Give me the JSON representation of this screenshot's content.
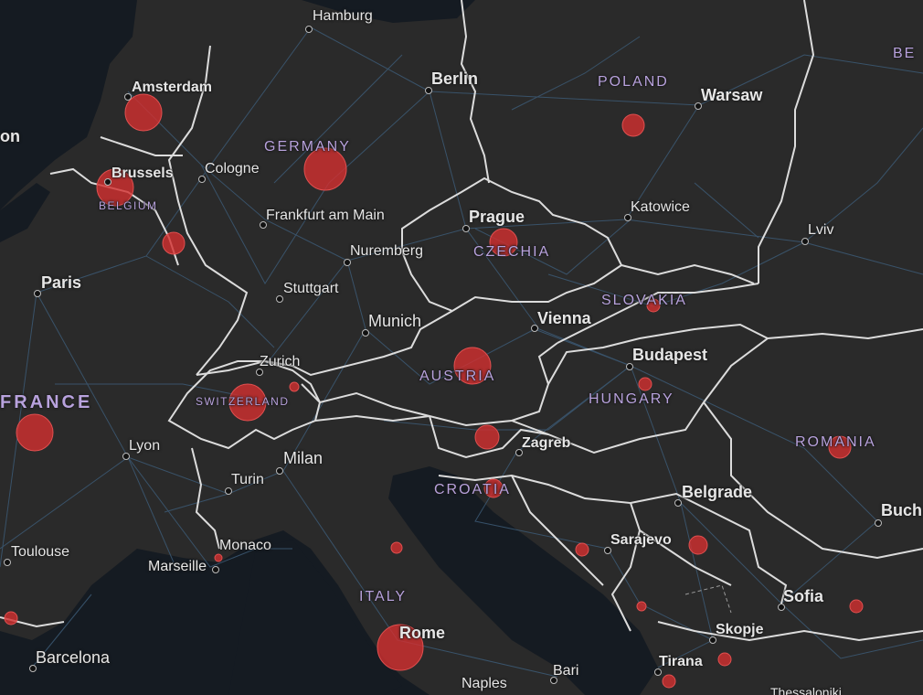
{
  "map": {
    "colors": {
      "land": "#2a2a2a",
      "water": "#151b22",
      "border": "#dcdcdc",
      "roads": "#3c5a75",
      "country_label": "#b8a2dd",
      "city_label": "#e6e6e6",
      "bubble": "#d32f2f"
    },
    "countries": {
      "germany": "GERMANY",
      "poland": "POLAND",
      "belgium": "BELGIUM",
      "czechia": "CZECHIA",
      "slovakia": "SLOVAKIA",
      "austria": "AUSTRIA",
      "switzerland": "SWITZERLAND",
      "hungary": "HUNGARY",
      "romania": "ROMANIA",
      "france": "FRANCE",
      "croatia": "CROATIA",
      "italy": "ITALY",
      "belarus_partial": "BE",
      "london_partial": "on"
    },
    "cities": {
      "hamburg": "Hamburg",
      "berlin": "Berlin",
      "amsterdam": "Amsterdam",
      "warsaw": "Warsaw",
      "brussels": "Brussels",
      "cologne": "Cologne",
      "frankfurt": "Frankfurt am Main",
      "prague": "Prague",
      "katowice": "Katowice",
      "lviv": "Lviv",
      "nuremberg": "Nuremberg",
      "paris": "Paris",
      "stuttgart": "Stuttgart",
      "munich": "Munich",
      "vienna": "Vienna",
      "budapest": "Budapest",
      "zurich": "Zurich",
      "lyon": "Lyon",
      "zagreb": "Zagreb",
      "milan": "Milan",
      "turin": "Turin",
      "belgrade": "Belgrade",
      "bucharest_partial": "Buch",
      "toulouse": "Toulouse",
      "monaco": "Monaco",
      "marseille": "Marseille",
      "sarajevo": "Sarajevo",
      "sofia": "Sofia",
      "rome": "Rome",
      "skopje": "Skopje",
      "tirana": "Tirana",
      "barcelona": "Barcelona",
      "bari": "Bari",
      "naples": "Naples",
      "thessaloniki_partial": "Thessaloniki"
    },
    "bubbles": [
      {
        "name": "Amsterdam",
        "size": "large"
      },
      {
        "name": "Brussels",
        "size": "large"
      },
      {
        "name": "Germany",
        "size": "large"
      },
      {
        "name": "Luxembourg",
        "size": "small"
      },
      {
        "name": "Poland",
        "size": "small"
      },
      {
        "name": "Czechia",
        "size": "medium"
      },
      {
        "name": "Slovakia",
        "size": "tiny"
      },
      {
        "name": "Austria",
        "size": "large"
      },
      {
        "name": "Liechtenstein",
        "size": "tiny"
      },
      {
        "name": "Switzerland",
        "size": "large"
      },
      {
        "name": "Hungary",
        "size": "tiny"
      },
      {
        "name": "Slovenia",
        "size": "small"
      },
      {
        "name": "France",
        "size": "large"
      },
      {
        "name": "Croatia",
        "size": "small"
      },
      {
        "name": "San Marino",
        "size": "tiny"
      },
      {
        "name": "Monaco",
        "size": "tiny"
      },
      {
        "name": "Bosnia",
        "size": "tiny"
      },
      {
        "name": "Serbia",
        "size": "small"
      },
      {
        "name": "Romania",
        "size": "small"
      },
      {
        "name": "Bulgaria",
        "size": "tiny"
      },
      {
        "name": "Montenegro",
        "size": "tiny"
      },
      {
        "name": "North Macedonia",
        "size": "tiny"
      },
      {
        "name": "Albania",
        "size": "tiny"
      },
      {
        "name": "Italy",
        "size": "large"
      },
      {
        "name": "Andorra",
        "size": "tiny"
      }
    ]
  }
}
